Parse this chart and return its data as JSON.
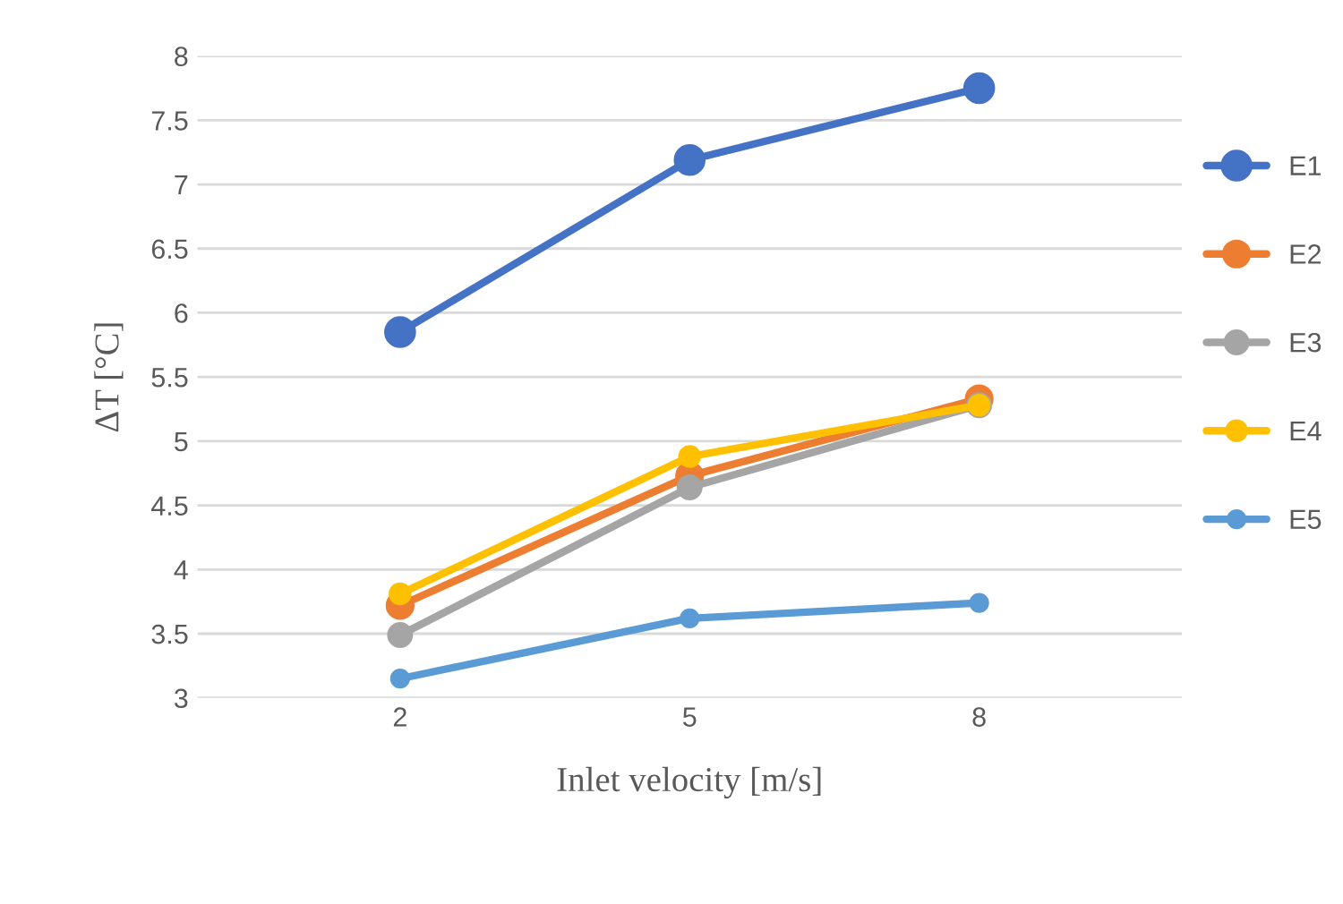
{
  "chart_data": {
    "type": "line",
    "xlabel": "Inlet velocity [m/s]",
    "ylabel": "ΔT [°C]",
    "categories": [
      "2",
      "5",
      "8"
    ],
    "series": [
      {
        "name": "E1",
        "color": "#4472c4",
        "values": [
          5.85,
          7.19,
          7.75
        ]
      },
      {
        "name": "E2",
        "color": "#ed7d31",
        "values": [
          3.72,
          4.73,
          5.33
        ]
      },
      {
        "name": "E3",
        "color": "#a5a5a5",
        "values": [
          3.49,
          4.64,
          5.28
        ]
      },
      {
        "name": "E4",
        "color": "#ffc000",
        "values": [
          3.81,
          4.88,
          5.28
        ]
      },
      {
        "name": "E5",
        "color": "#5b9bd5",
        "values": [
          3.15,
          3.62,
          3.74
        ]
      }
    ],
    "ylim": [
      3,
      8
    ],
    "yticks": [
      3,
      {
        "value": 3.5,
        "label": "3.5"
      },
      4,
      {
        "value": 4.5,
        "label": "4.5"
      },
      5,
      {
        "value": 5.5,
        "label": "5.5"
      },
      6,
      {
        "value": 6.5,
        "label": "6.5"
      },
      7,
      {
        "value": 7.5,
        "label": "7.5"
      },
      8
    ],
    "grid": "y",
    "legend": "right",
    "marker": "circle",
    "line_style": "solid"
  }
}
